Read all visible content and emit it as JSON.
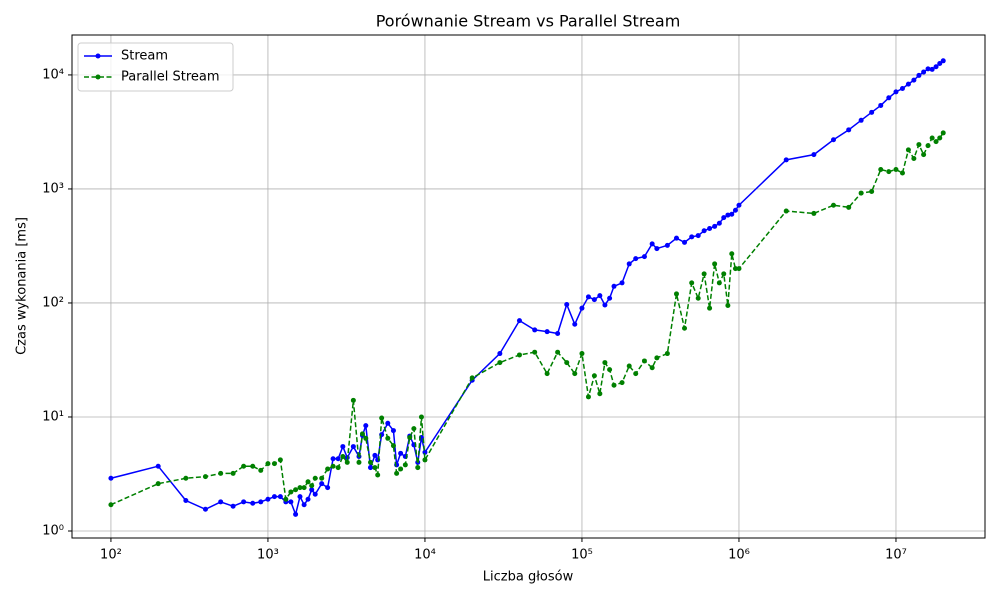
{
  "chart_data": {
    "type": "line",
    "title": "Porównanie Stream vs Parallel Stream",
    "xlabel": "Liczba głosów",
    "ylabel": "Czas wykonania [ms]",
    "xscale": "log",
    "yscale": "log",
    "grid": true,
    "legend": "upper left",
    "xlim": [
      56.5,
      36900000
    ],
    "ylim": [
      0.868,
      22400
    ],
    "xticks": [
      {
        "value": 100,
        "label": "10²"
      },
      {
        "value": 1000,
        "label": "10³"
      },
      {
        "value": 10000,
        "label": "10⁴"
      },
      {
        "value": 100000,
        "label": "10⁵"
      },
      {
        "value": 1000000,
        "label": "10⁶"
      },
      {
        "value": 10000000,
        "label": "10⁷"
      }
    ],
    "yticks": [
      {
        "value": 1,
        "label": "10⁰"
      },
      {
        "value": 10,
        "label": "10¹"
      },
      {
        "value": 100,
        "label": "10²"
      },
      {
        "value": 1000,
        "label": "10³"
      },
      {
        "value": 10000,
        "label": "10⁴"
      }
    ],
    "x": [
      100,
      200,
      300,
      400,
      500,
      600,
      700,
      800,
      900,
      1000,
      1100,
      1200,
      1300,
      1400,
      1500,
      1600,
      1700,
      1800,
      1900,
      2000,
      2200,
      2400,
      2600,
      2800,
      3000,
      3200,
      3500,
      3800,
      4000,
      4200,
      4500,
      4800,
      5000,
      5300,
      5800,
      6300,
      6600,
      7000,
      7500,
      8000,
      8500,
      9000,
      9500,
      10000,
      20000,
      30000,
      40000,
      50000,
      60000,
      70000,
      80000,
      90000,
      100000,
      110000,
      120000,
      130000,
      140000,
      150000,
      160000,
      180000,
      200000,
      220000,
      250000,
      280000,
      300000,
      350000,
      400000,
      450000,
      500000,
      550000,
      600000,
      650000,
      700000,
      750000,
      800000,
      850000,
      900000,
      950000,
      1000000,
      2000000,
      3000000,
      4000000,
      5000000,
      6000000,
      7000000,
      8000000,
      9000000,
      10000000,
      11000000,
      12000000,
      13000000,
      14000000,
      15000000,
      16000000,
      17000000,
      18000000,
      19000000,
      20000000
    ],
    "series": [
      {
        "name": "Stream",
        "color": "#0000ff",
        "dash": "solid",
        "values": [
          2.9,
          3.7,
          1.85,
          1.55,
          1.8,
          1.65,
          1.8,
          1.75,
          1.8,
          1.9,
          2.0,
          2.0,
          1.8,
          1.8,
          1.4,
          2.0,
          1.7,
          1.9,
          2.3,
          2.1,
          2.6,
          2.4,
          4.3,
          4.3,
          5.5,
          4.4,
          5.5,
          4.5,
          6.9,
          8.4,
          3.6,
          4.6,
          4.2,
          7.0,
          8.8,
          7.6,
          3.8,
          4.8,
          4.5,
          6.8,
          5.7,
          4.0,
          6.6,
          4.9,
          21,
          36,
          70,
          58,
          56,
          54,
          97,
          65,
          90,
          113,
          107,
          116,
          96,
          110,
          140,
          150,
          220,
          245,
          255,
          330,
          300,
          320,
          370,
          340,
          380,
          390,
          430,
          450,
          470,
          500,
          560,
          590,
          600,
          650,
          720,
          1800,
          2000,
          2700,
          3300,
          4000,
          4700,
          5400,
          6300,
          7100,
          7600,
          8300,
          9000,
          9900,
          10600,
          11300,
          11200,
          11800,
          12600,
          13300
        ]
      },
      {
        "name": "Parallel Stream",
        "color": "#008000",
        "dash": "dashed",
        "values": [
          1.7,
          2.6,
          2.9,
          3.0,
          3.2,
          3.2,
          3.7,
          3.7,
          3.4,
          3.9,
          3.9,
          4.2,
          1.9,
          2.2,
          2.3,
          2.4,
          2.4,
          2.7,
          2.5,
          2.9,
          2.9,
          3.5,
          3.7,
          3.6,
          4.5,
          4.0,
          14,
          4.0,
          7.1,
          6.5,
          4.0,
          3.6,
          3.1,
          9.8,
          6.5,
          5.6,
          3.2,
          3.5,
          3.8,
          6.6,
          7.9,
          3.6,
          10,
          4.2,
          22,
          30,
          35,
          37,
          24,
          37,
          30,
          24,
          36,
          15,
          23,
          16,
          30,
          26,
          19,
          20,
          28,
          24,
          31,
          27,
          33,
          36,
          120,
          60,
          150,
          110,
          180,
          90,
          220,
          150,
          180,
          95,
          270,
          200,
          200,
          640,
          610,
          720,
          690,
          920,
          950,
          1480,
          1420,
          1480,
          1380,
          2200,
          1850,
          2450,
          2000,
          2400,
          2800,
          2600,
          2800,
          3100
        ]
      }
    ]
  }
}
